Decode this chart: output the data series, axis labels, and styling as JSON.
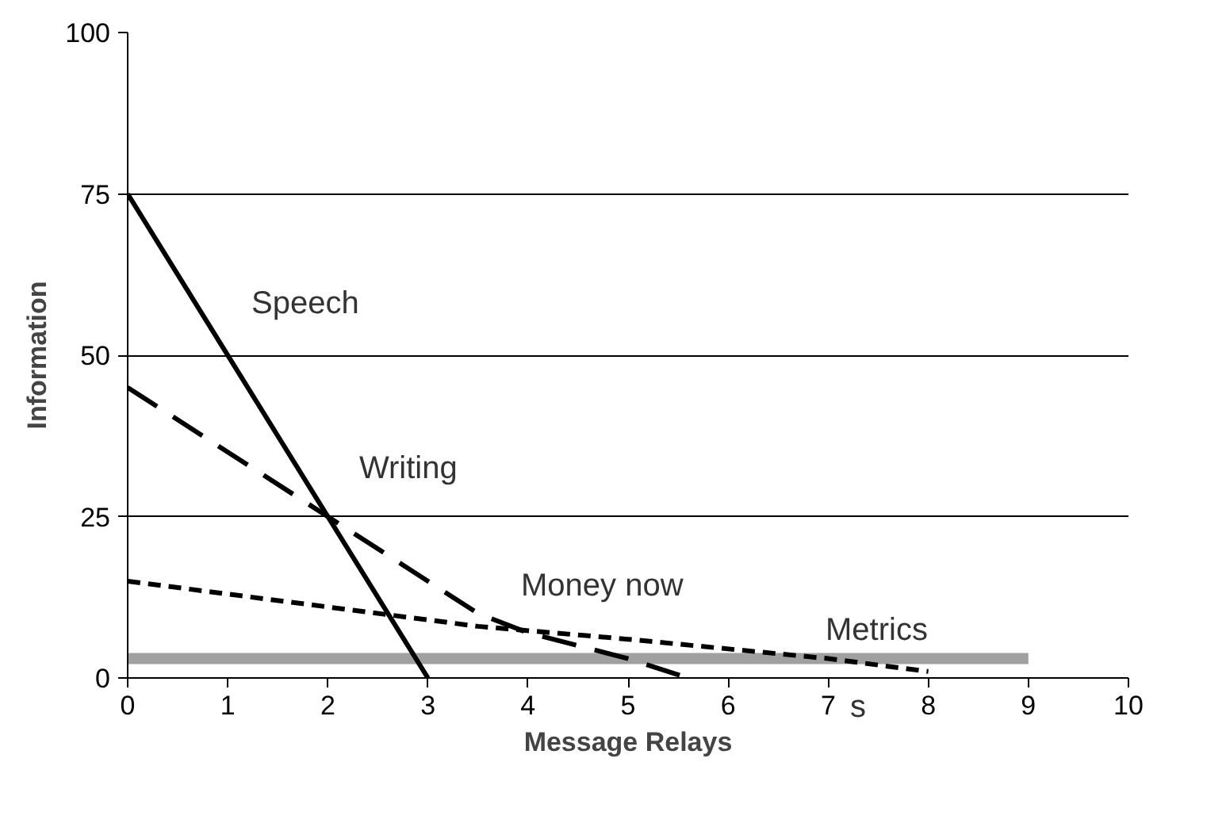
{
  "chart_data": {
    "type": "line",
    "xlabel": "Message Relays",
    "ylabel": "Information",
    "xlim": [
      0,
      10
    ],
    "ylim": [
      0,
      100
    ],
    "xticks": [
      0,
      1,
      2,
      3,
      4,
      5,
      6,
      7,
      8,
      9,
      10
    ],
    "yticks": [
      0,
      25,
      50,
      75,
      100
    ],
    "grid": "y",
    "series": [
      {
        "x": [
          0,
          3
        ],
        "values": [
          75,
          0
        ],
        "color": "#000000",
        "line_style": "solid"
      },
      {
        "x": [
          0,
          2,
          3.5,
          4,
          5,
          5.6
        ],
        "values": [
          45,
          25,
          10,
          7,
          3,
          0
        ],
        "color": "#000000",
        "line_style": "dashed"
      },
      {
        "x": [
          0,
          2,
          3.5,
          5,
          7,
          8
        ],
        "values": [
          15,
          11,
          8,
          6,
          3,
          1
        ],
        "color": "#000000",
        "line_style": "dotted"
      },
      {
        "x": [
          0,
          9
        ],
        "values": [
          3,
          3
        ],
        "color": "#a0a0a0",
        "line_style": "solid"
      }
    ],
    "annotations": [
      "Speech",
      "Writing",
      "Money now",
      "Metrics",
      "s"
    ]
  }
}
